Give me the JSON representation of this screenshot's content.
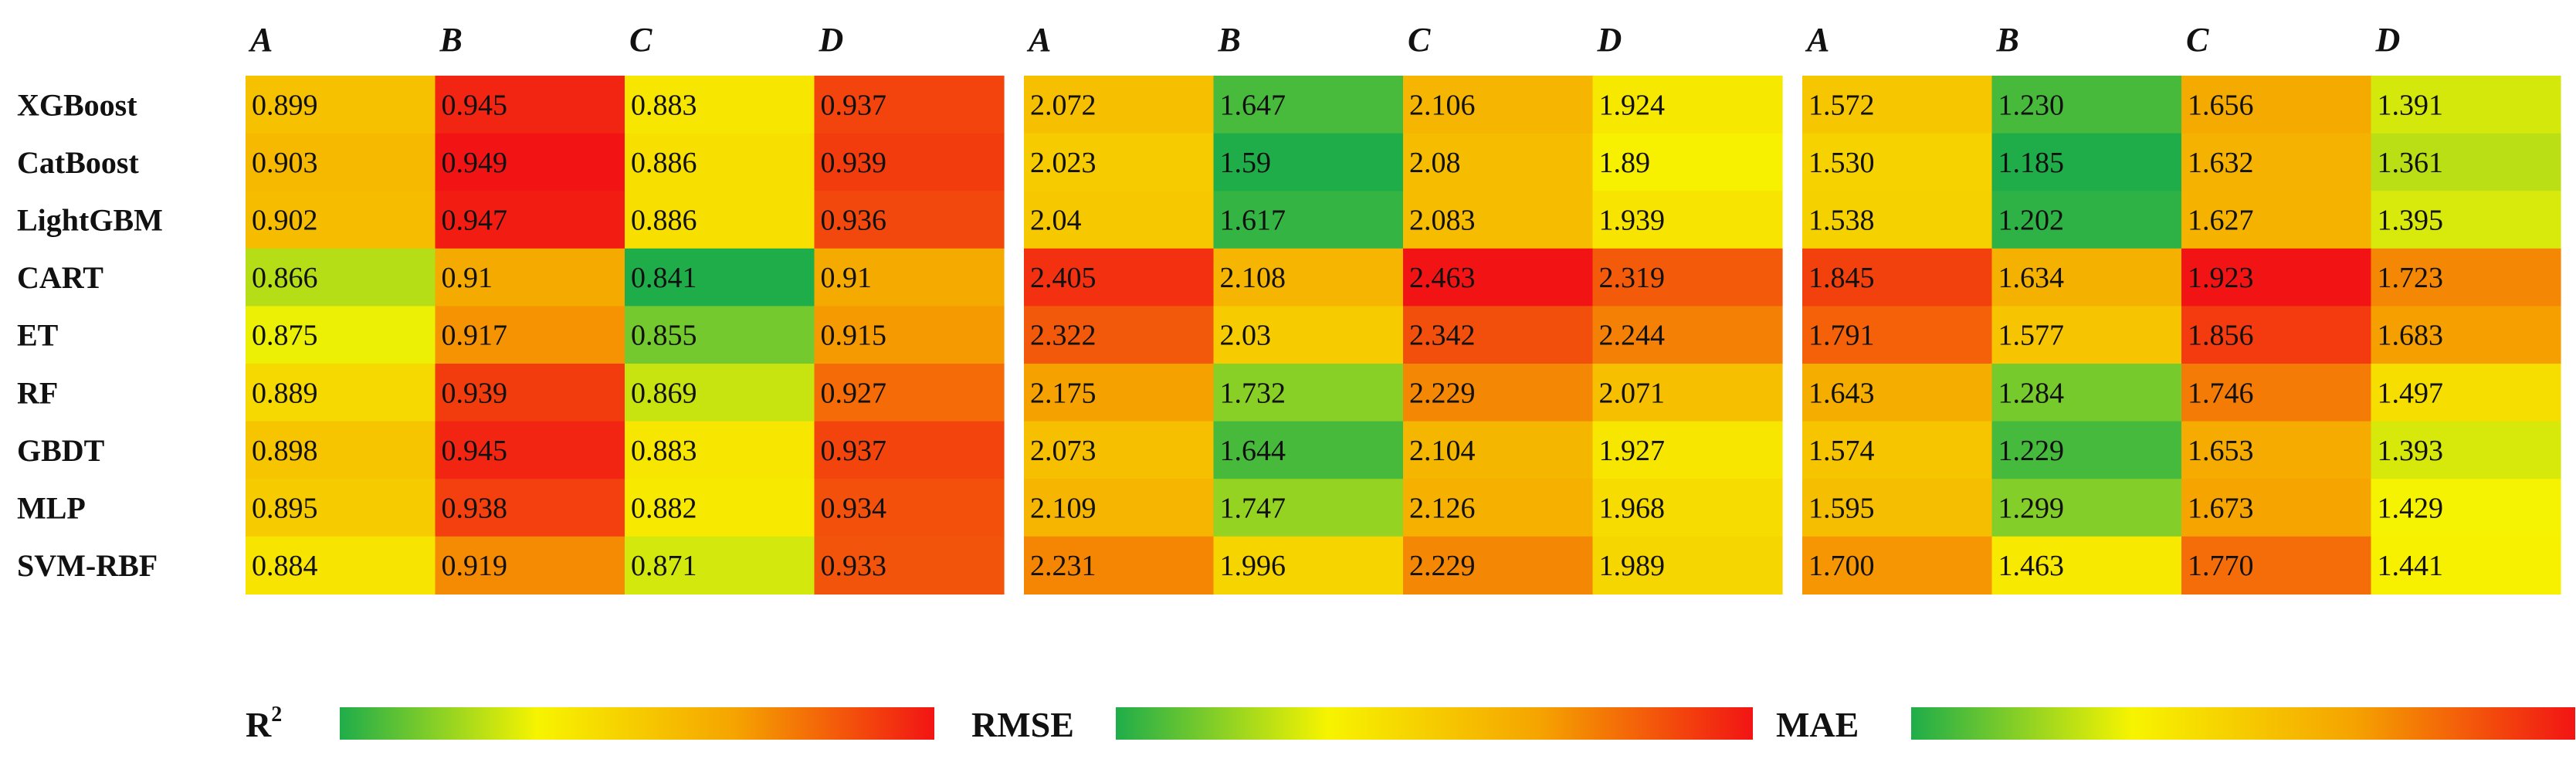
{
  "chart_data": [
    {
      "type": "heatmap",
      "metric": "R²",
      "label_main": "R",
      "label_sup": "2",
      "columns": [
        "A",
        "B",
        "C",
        "D"
      ],
      "rows": [
        "XGBoost",
        "CatBoost",
        "LightGBM",
        "CART",
        "ET",
        "RF",
        "GBDT",
        "MLP",
        "SVM-RBF"
      ],
      "values": [
        [
          "0.899",
          "0.945",
          "0.883",
          "0.937"
        ],
        [
          "0.903",
          "0.949",
          "0.886",
          "0.939"
        ],
        [
          "0.902",
          "0.947",
          "0.886",
          "0.936"
        ],
        [
          "0.866",
          "0.91",
          "0.841",
          "0.91"
        ],
        [
          "0.875",
          "0.917",
          "0.855",
          "0.915"
        ],
        [
          "0.889",
          "0.939",
          "0.869",
          "0.927"
        ],
        [
          "0.898",
          "0.945",
          "0.883",
          "0.937"
        ],
        [
          "0.895",
          "0.938",
          "0.882",
          "0.934"
        ],
        [
          "0.884",
          "0.919",
          "0.871",
          "0.933"
        ]
      ],
      "colorscale": [
        "#1fad4a",
        "#f7f400",
        "#f5a300",
        "#f21414"
      ]
    },
    {
      "type": "heatmap",
      "metric": "RMSE",
      "label_main": "RMSE",
      "label_sup": "",
      "columns": [
        "A",
        "B",
        "C",
        "D"
      ],
      "rows": [
        "XGBoost",
        "CatBoost",
        "LightGBM",
        "CART",
        "ET",
        "RF",
        "GBDT",
        "MLP",
        "SVM-RBF"
      ],
      "values": [
        [
          "2.072",
          "1.647",
          "2.106",
          "1.924"
        ],
        [
          "2.023",
          "1.59",
          "2.08",
          "1.89"
        ],
        [
          "2.04",
          "1.617",
          "2.083",
          "1.939"
        ],
        [
          "2.405",
          "2.108",
          "2.463",
          "2.319"
        ],
        [
          "2.322",
          "2.03",
          "2.342",
          "2.244"
        ],
        [
          "2.175",
          "1.732",
          "2.229",
          "2.071"
        ],
        [
          "2.073",
          "1.644",
          "2.104",
          "1.927"
        ],
        [
          "2.109",
          "1.747",
          "2.126",
          "1.968"
        ],
        [
          "2.231",
          "1.996",
          "2.229",
          "1.989"
        ]
      ],
      "colorscale": [
        "#1fad4a",
        "#f7f400",
        "#f5a300",
        "#f21414"
      ]
    },
    {
      "type": "heatmap",
      "metric": "MAE",
      "label_main": "MAE",
      "label_sup": "",
      "columns": [
        "A",
        "B",
        "C",
        "D"
      ],
      "rows": [
        "XGBoost",
        "CatBoost",
        "LightGBM",
        "CART",
        "ET",
        "RF",
        "GBDT",
        "MLP",
        "SVM-RBF"
      ],
      "values": [
        [
          "1.572",
          "1.230",
          "1.656",
          "1.391"
        ],
        [
          "1.530",
          "1.185",
          "1.632",
          "1.361"
        ],
        [
          "1.538",
          "1.202",
          "1.627",
          "1.395"
        ],
        [
          "1.845",
          "1.634",
          "1.923",
          "1.723"
        ],
        [
          "1.791",
          "1.577",
          "1.856",
          "1.683"
        ],
        [
          "1.643",
          "1.284",
          "1.746",
          "1.497"
        ],
        [
          "1.574",
          "1.229",
          "1.653",
          "1.393"
        ],
        [
          "1.595",
          "1.299",
          "1.673",
          "1.429"
        ],
        [
          "1.700",
          "1.463",
          "1.770",
          "1.441"
        ]
      ],
      "colorscale": [
        "#1fad4a",
        "#f7f400",
        "#f5a300",
        "#f21414"
      ]
    }
  ]
}
